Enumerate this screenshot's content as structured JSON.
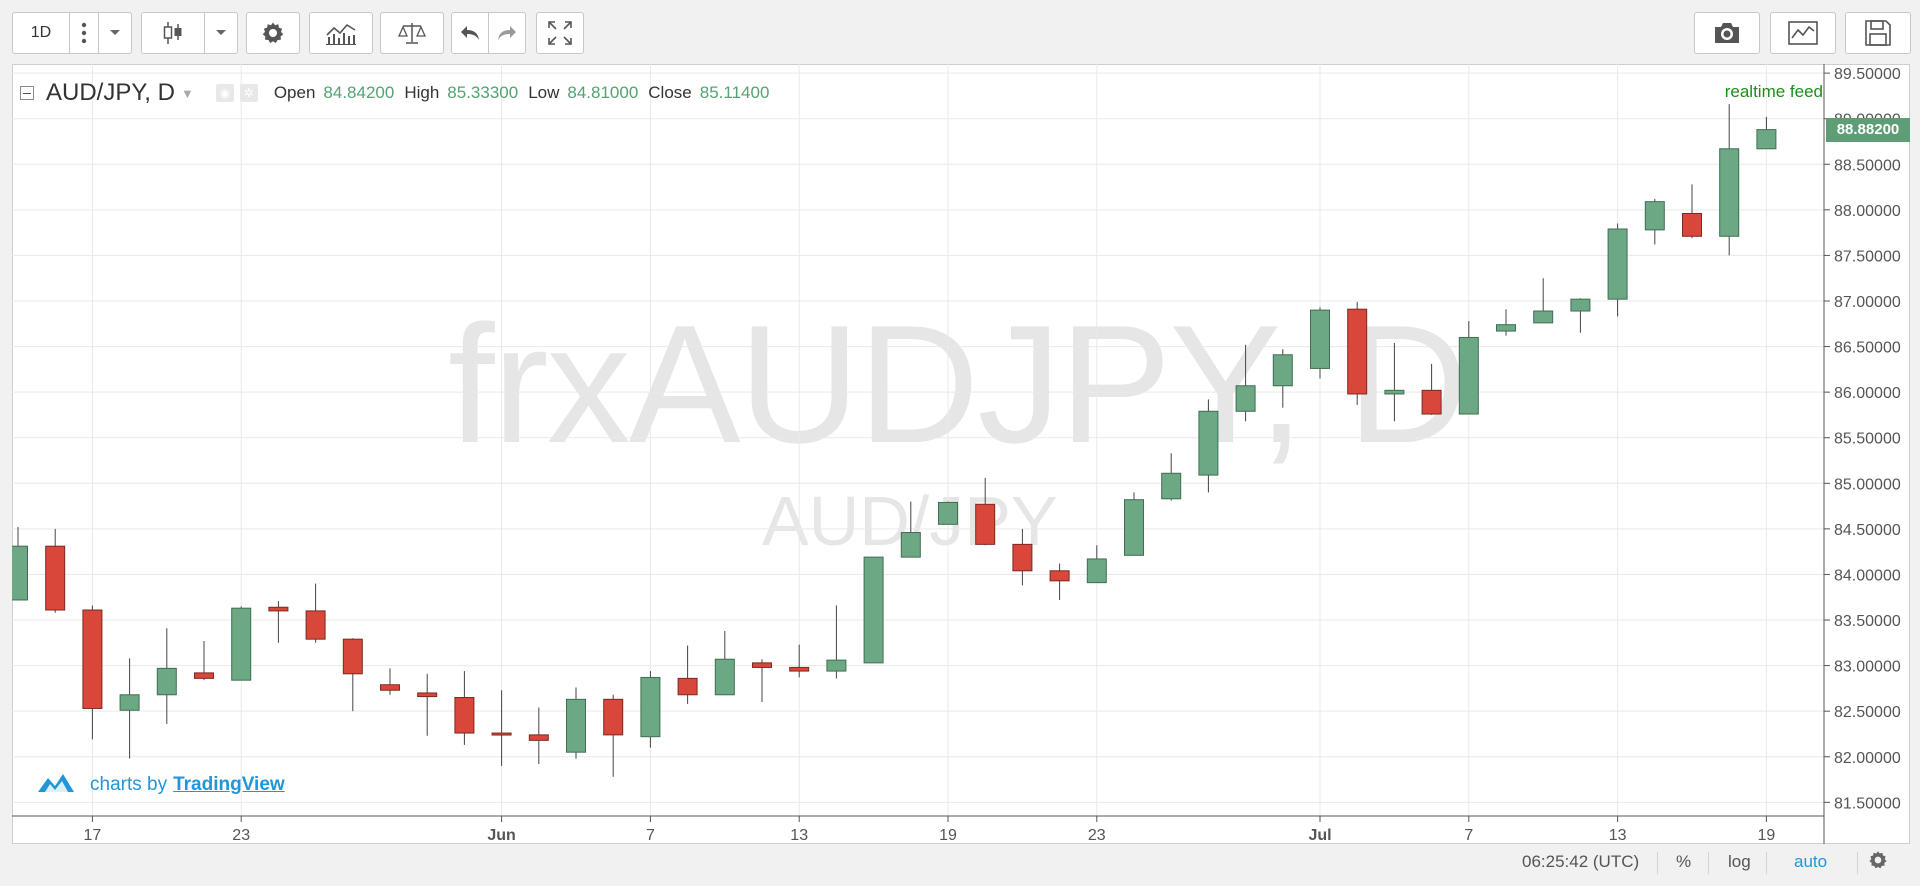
{
  "toolbar": {
    "interval_label": "1D",
    "icons": [
      "more-vertical-icon",
      "chevron-down-icon",
      "candlestick-icon",
      "chevron-down-icon",
      "gear-icon",
      "indicators-icon",
      "compare-icon",
      "undo-icon",
      "redo-icon",
      "fullscreen-icon",
      "camera-icon",
      "line-chart-icon",
      "save-icon"
    ]
  },
  "legend": {
    "symbol": "AUD/JPY, D",
    "open_label": "Open",
    "open_value": "84.84200",
    "high_label": "High",
    "high_value": "85.33300",
    "low_label": "Low",
    "low_value": "84.81000",
    "close_label": "Close",
    "close_value": "85.11400"
  },
  "realtime_label": "realtime feed",
  "watermark": {
    "main": "frxAUDJPY, D",
    "sub": "AUD/JPY"
  },
  "branding": {
    "prefix": "charts by",
    "link": "TradingView"
  },
  "last_price": "88.88200",
  "statusbar": {
    "time": "06:25:42 (UTC)",
    "percent": "%",
    "log": "log",
    "auto": "auto"
  },
  "colors": {
    "up": "#6ca883",
    "down": "#d9473a",
    "last_price_bg": "#5e9e76",
    "realtime": "#1d8f1d",
    "link": "#2196d8"
  },
  "chart_data": {
    "type": "candlestick",
    "ylim": [
      81.35,
      89.6
    ],
    "y_ticks": [
      "81.50000",
      "82.00000",
      "82.50000",
      "83.00000",
      "83.50000",
      "84.00000",
      "84.50000",
      "85.00000",
      "85.50000",
      "86.00000",
      "86.50000",
      "87.00000",
      "87.50000",
      "88.00000",
      "88.50000",
      "89.00000",
      "89.50000"
    ],
    "x_ticks": [
      {
        "i": 2,
        "label": "17"
      },
      {
        "i": 6,
        "label": "23"
      },
      {
        "i": 13,
        "label": "Jun"
      },
      {
        "i": 17,
        "label": "7"
      },
      {
        "i": 21,
        "label": "13"
      },
      {
        "i": 25,
        "label": "19"
      },
      {
        "i": 29,
        "label": "23"
      },
      {
        "i": 35,
        "label": "Jul"
      },
      {
        "i": 39,
        "label": "7"
      },
      {
        "i": 43,
        "label": "13"
      },
      {
        "i": 47,
        "label": "19"
      }
    ],
    "candles": [
      {
        "o": 83.72,
        "h": 84.52,
        "l": 83.72,
        "c": 84.31
      },
      {
        "o": 84.31,
        "h": 84.5,
        "l": 83.58,
        "c": 83.61
      },
      {
        "o": 83.61,
        "h": 83.66,
        "l": 82.19,
        "c": 82.53
      },
      {
        "o": 82.51,
        "h": 83.08,
        "l": 81.98,
        "c": 82.68
      },
      {
        "o": 82.68,
        "h": 83.41,
        "l": 82.36,
        "c": 82.97
      },
      {
        "o": 82.92,
        "h": 83.27,
        "l": 82.84,
        "c": 82.86
      },
      {
        "o": 82.84,
        "h": 83.65,
        "l": 82.84,
        "c": 83.63
      },
      {
        "o": 83.64,
        "h": 83.71,
        "l": 83.25,
        "c": 83.6
      },
      {
        "o": 83.6,
        "h": 83.9,
        "l": 83.25,
        "c": 83.29
      },
      {
        "o": 83.29,
        "h": 83.3,
        "l": 82.5,
        "c": 82.91
      },
      {
        "o": 82.79,
        "h": 82.97,
        "l": 82.68,
        "c": 82.73
      },
      {
        "o": 82.7,
        "h": 82.91,
        "l": 82.23,
        "c": 82.66
      },
      {
        "o": 82.65,
        "h": 82.94,
        "l": 82.13,
        "c": 82.26
      },
      {
        "o": 82.26,
        "h": 82.73,
        "l": 81.9,
        "c": 82.24
      },
      {
        "o": 82.24,
        "h": 82.54,
        "l": 81.92,
        "c": 82.18
      },
      {
        "o": 82.05,
        "h": 82.76,
        "l": 81.98,
        "c": 82.63
      },
      {
        "o": 82.63,
        "h": 82.68,
        "l": 81.78,
        "c": 82.24
      },
      {
        "o": 82.22,
        "h": 82.94,
        "l": 82.1,
        "c": 82.87
      },
      {
        "o": 82.86,
        "h": 83.22,
        "l": 82.58,
        "c": 82.68
      },
      {
        "o": 82.68,
        "h": 83.38,
        "l": 82.68,
        "c": 83.07
      },
      {
        "o": 83.03,
        "h": 83.07,
        "l": 82.6,
        "c": 82.98
      },
      {
        "o": 82.98,
        "h": 83.23,
        "l": 82.87,
        "c": 82.94
      },
      {
        "o": 82.94,
        "h": 83.66,
        "l": 82.86,
        "c": 83.06
      },
      {
        "o": 83.03,
        "h": 84.19,
        "l": 83.03,
        "c": 84.19
      },
      {
        "o": 84.19,
        "h": 84.8,
        "l": 84.19,
        "c": 84.46
      },
      {
        "o": 84.55,
        "h": 84.8,
        "l": 84.55,
        "c": 84.79
      },
      {
        "o": 84.77,
        "h": 85.06,
        "l": 84.32,
        "c": 84.33
      },
      {
        "o": 84.33,
        "h": 84.5,
        "l": 83.88,
        "c": 84.04
      },
      {
        "o": 84.04,
        "h": 84.12,
        "l": 83.72,
        "c": 83.93
      },
      {
        "o": 83.91,
        "h": 84.32,
        "l": 83.91,
        "c": 84.17
      },
      {
        "o": 84.21,
        "h": 84.9,
        "l": 84.21,
        "c": 84.82
      },
      {
        "o": 84.83,
        "h": 85.33,
        "l": 84.81,
        "c": 85.11
      },
      {
        "o": 85.09,
        "h": 85.92,
        "l": 84.9,
        "c": 85.79
      },
      {
        "o": 85.79,
        "h": 86.52,
        "l": 85.68,
        "c": 86.07
      },
      {
        "o": 86.07,
        "h": 86.47,
        "l": 85.83,
        "c": 86.41
      },
      {
        "o": 86.26,
        "h": 86.93,
        "l": 86.15,
        "c": 86.9
      },
      {
        "o": 86.91,
        "h": 86.99,
        "l": 85.86,
        "c": 85.98
      },
      {
        "o": 85.98,
        "h": 86.54,
        "l": 85.68,
        "c": 86.02
      },
      {
        "o": 86.02,
        "h": 86.31,
        "l": 85.75,
        "c": 85.76
      },
      {
        "o": 85.76,
        "h": 86.78,
        "l": 85.76,
        "c": 86.6
      },
      {
        "o": 86.67,
        "h": 86.91,
        "l": 86.62,
        "c": 86.74
      },
      {
        "o": 86.76,
        "h": 87.25,
        "l": 86.76,
        "c": 86.89
      },
      {
        "o": 86.89,
        "h": 87.03,
        "l": 86.65,
        "c": 87.02
      },
      {
        "o": 87.02,
        "h": 87.85,
        "l": 86.83,
        "c": 87.79
      },
      {
        "o": 87.78,
        "h": 88.12,
        "l": 87.62,
        "c": 88.09
      },
      {
        "o": 87.96,
        "h": 88.28,
        "l": 87.69,
        "c": 87.71
      },
      {
        "o": 87.71,
        "h": 89.16,
        "l": 87.5,
        "c": 88.67
      },
      {
        "o": 88.67,
        "h": 89.02,
        "l": 88.67,
        "c": 88.88
      }
    ]
  }
}
